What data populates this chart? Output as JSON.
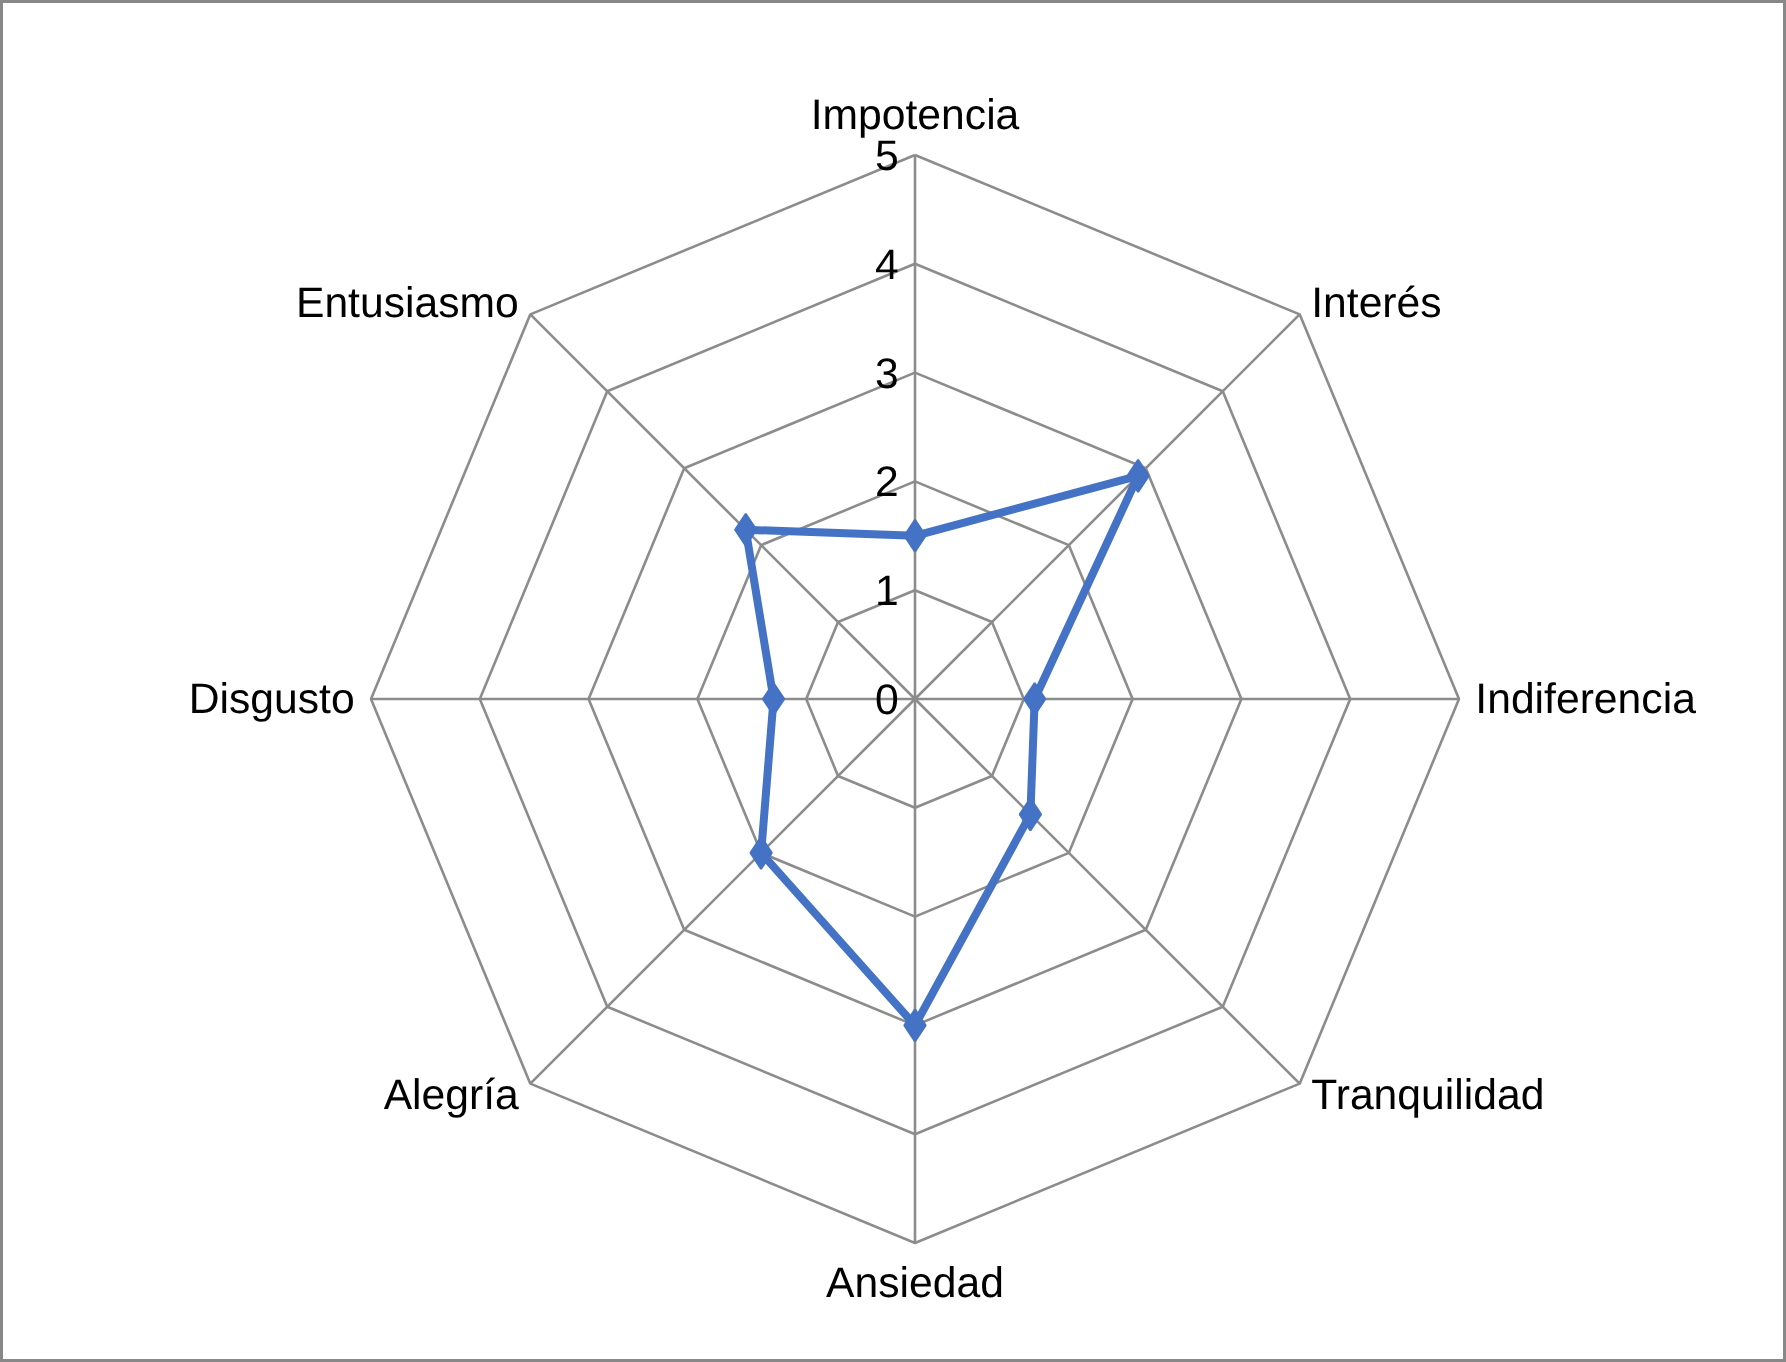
{
  "chart_data": {
    "type": "radar",
    "categories": [
      "Impotencia",
      "Interés",
      "Indiferencia",
      "Tranquilidad",
      "Ansiedad",
      "Alegría",
      "Disgusto",
      "Entusiasmo"
    ],
    "series": [
      {
        "color": "#4472c4",
        "values": [
          1.5,
          2.9,
          1.1,
          1.5,
          3.0,
          2.0,
          1.3,
          2.2
        ]
      }
    ],
    "ylim": [
      0,
      5
    ],
    "yticks": [
      0,
      1,
      2,
      3,
      4,
      5
    ],
    "marker": "diamond",
    "grid": true
  }
}
